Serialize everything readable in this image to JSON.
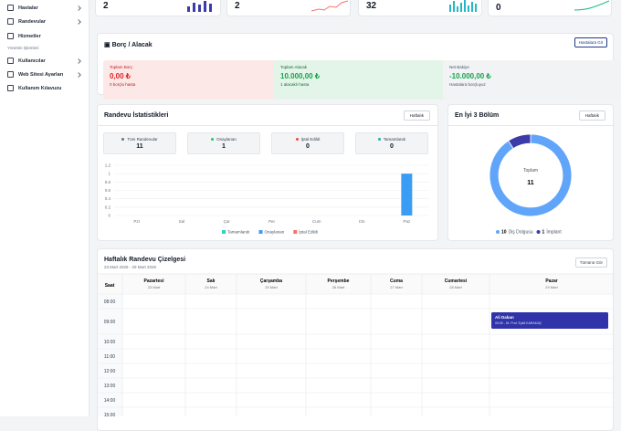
{
  "sidebar": {
    "items": [
      {
        "label": "Hastalar"
      },
      {
        "label": "Randevular"
      },
      {
        "label": "Hizmetler"
      }
    ],
    "section": "Yönetim İşlemleri",
    "admin_items": [
      {
        "label": "Kullanıcılar"
      },
      {
        "label": "Web Sitesi Ayarları"
      },
      {
        "label": "Kullanım Kılavuzu"
      }
    ]
  },
  "stat_cards": [
    {
      "value": 2
    },
    {
      "value": 2
    },
    {
      "value": 32
    },
    {
      "value": 0
    }
  ],
  "balance": {
    "title": "Borç / Alacak",
    "button": "Hastalara Git",
    "boxes": [
      {
        "label": "Toplam Borç",
        "amount": "0,00 ₺",
        "note": "0 borçlu hasta"
      },
      {
        "label": "Toplam Alacak",
        "amount": "10.000,00 ₺",
        "note": "1 alacaklı hasta"
      },
      {
        "label": "Net Bakiye",
        "amount": "-10.000,00 ₺",
        "note": "Hastalara borçluyuz"
      }
    ]
  },
  "appointment_stats": {
    "title": "Randevu İstatistikleri",
    "period": "Haftalık",
    "summary": [
      {
        "label": "Tüm Randevular",
        "value": 11,
        "color": "#6b7280"
      },
      {
        "label": "Onaylanan",
        "value": 1,
        "color": "#22c55e"
      },
      {
        "label": "İptal Edildi",
        "value": 0,
        "color": "#ef4444"
      },
      {
        "label": "Tamamlandı",
        "value": 0,
        "color": "#14b8a6"
      }
    ],
    "chart": {
      "type": "bar",
      "categories": [
        "Pzt",
        "Sal",
        "Çar",
        "Per",
        "Cum",
        "Cts",
        "Paz"
      ],
      "series": [
        {
          "name": "Tamamlandı",
          "color": "#2dd4bf",
          "values": [
            0,
            0,
            0,
            0,
            0,
            0,
            0
          ]
        },
        {
          "name": "Onaylanan",
          "color": "#3b9cf5",
          "values": [
            0,
            0,
            0,
            0,
            0,
            0,
            1
          ]
        },
        {
          "name": "İptal Edildi",
          "color": "#f87171",
          "values": [
            0,
            0,
            0,
            0,
            0,
            0,
            0
          ]
        }
      ],
      "ylim": [
        0,
        1.2
      ],
      "yticks": [
        0,
        0.2,
        0.4,
        0.6,
        0.8,
        1,
        1.2
      ],
      "grid": true
    }
  },
  "top_departments": {
    "title": "En İyi 3 Bölüm",
    "period": "Haftalık",
    "chart": {
      "type": "pie",
      "total_label": "Toplam",
      "total": 11,
      "categories": [
        "Diş Dolgusu",
        "İmplant"
      ],
      "values": [
        10,
        1
      ],
      "colors": [
        "#60a5fa",
        "#3b3ca8"
      ]
    }
  },
  "schedule": {
    "title": "Haftalık Randevu Çizelgesi",
    "date_range": "23 Mart 2026 - 29 Mart 2026",
    "button": "Tümünü Gör",
    "time_header": "Saat",
    "days": [
      {
        "name": "Pazartesi",
        "date": "23 Mart"
      },
      {
        "name": "Salı",
        "date": "24 Mart"
      },
      {
        "name": "Çarşamba",
        "date": "25 Mart"
      },
      {
        "name": "Perşembe",
        "date": "26 Mart"
      },
      {
        "name": "Cuma",
        "date": "27 Mart"
      },
      {
        "name": "Cumartesi",
        "date": "28 Mart"
      },
      {
        "name": "Pazar",
        "date": "29 Mart"
      }
    ],
    "times": [
      "08:00",
      "09:00",
      "10:00",
      "11:00",
      "12:00",
      "13:00",
      "14:00",
      "15:00"
    ],
    "events": [
      {
        "day": 6,
        "time": 1,
        "patient": "Ali Daban",
        "detail": "09:30 - Dt. Prof. Eylül KARAKAŞ"
      }
    ]
  }
}
